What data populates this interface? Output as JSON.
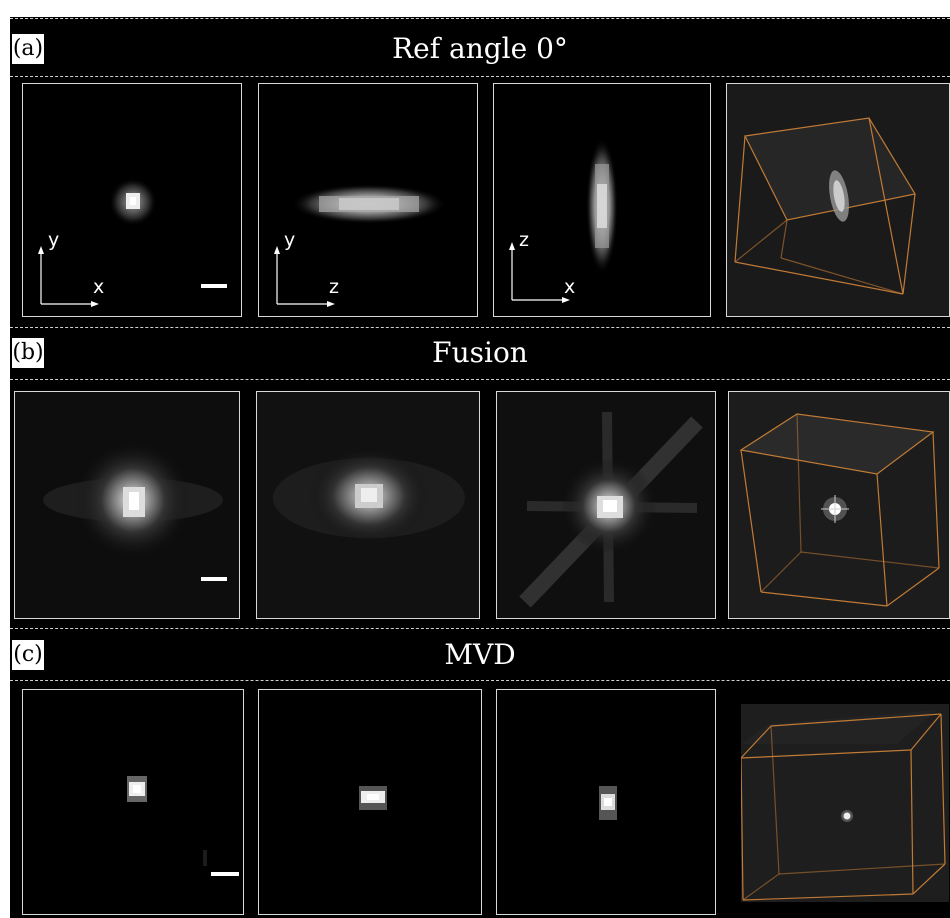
{
  "rows": [
    {
      "label": "(a)",
      "title": "Ref angle 0°",
      "axes": [
        {
          "vertical": "y",
          "horizontal": "x"
        },
        {
          "vertical": "y",
          "horizontal": "z"
        },
        {
          "vertical": "z",
          "horizontal": "x"
        }
      ]
    },
    {
      "label": "(b)",
      "title": "Fusion"
    },
    {
      "label": "(c)",
      "title": "MVD"
    }
  ],
  "colors": {
    "background": "#000000",
    "frame": "#d8d8d8",
    "box_edges": "#c07a35",
    "dashed_separator": "#cfcfcf"
  }
}
